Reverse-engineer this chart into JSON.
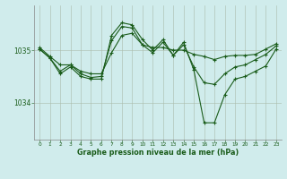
{
  "bg_color": "#d0ecec",
  "line_color": "#1a5c1a",
  "xlabel": "Graphe pression niveau de la mer (hPa)",
  "ylim": [
    1033.3,
    1035.85
  ],
  "xlim": [
    -0.5,
    23.5
  ],
  "yticks": [
    1034,
    1035
  ],
  "xticks": [
    0,
    1,
    2,
    3,
    4,
    5,
    6,
    7,
    8,
    9,
    10,
    11,
    12,
    13,
    14,
    15,
    16,
    17,
    18,
    19,
    20,
    21,
    22,
    23
  ],
  "line1_y": [
    1035.05,
    1034.88,
    1034.72,
    1034.72,
    1034.6,
    1034.55,
    1034.55,
    1034.95,
    1035.28,
    1035.32,
    1035.1,
    1035.05,
    1035.05,
    1035.0,
    1035.0,
    1034.92,
    1034.88,
    1034.82,
    1034.88,
    1034.9,
    1034.9,
    1034.92,
    1035.02,
    1035.12
  ],
  "line2_y": [
    1035.02,
    1034.85,
    1034.6,
    1034.72,
    1034.55,
    1034.48,
    1034.5,
    1035.18,
    1035.45,
    1035.42,
    1035.1,
    1034.95,
    1035.15,
    1034.9,
    1035.1,
    1034.68,
    1034.38,
    1034.35,
    1034.55,
    1034.68,
    1034.72,
    1034.82,
    1034.92,
    1035.08
  ],
  "line3_y": [
    1035.02,
    1034.85,
    1034.55,
    1034.68,
    1034.5,
    1034.45,
    1034.45,
    1035.28,
    1035.52,
    1035.48,
    1035.2,
    1035.0,
    1035.2,
    1034.9,
    1035.15,
    1034.62,
    1033.62,
    1033.62,
    1034.15,
    1034.45,
    1034.5,
    1034.6,
    1034.7,
    1035.02
  ]
}
